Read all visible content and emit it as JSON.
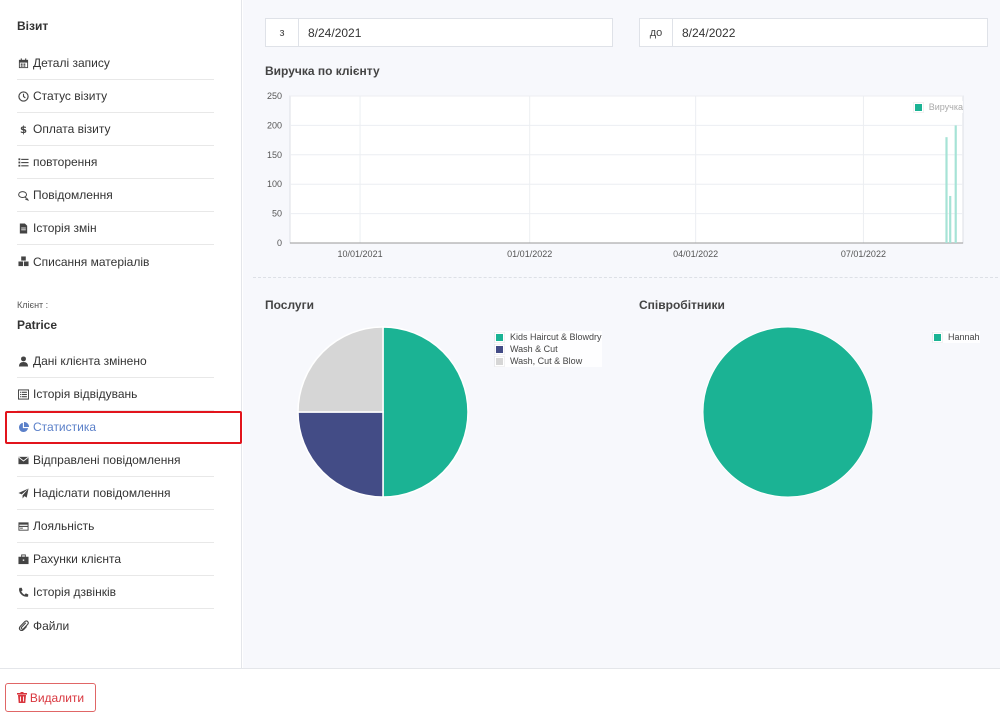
{
  "sidebar": {
    "visit_title": "Візит",
    "visit_items": [
      {
        "label": "Деталі запису",
        "icon": "calendar-icon"
      },
      {
        "label": "Статус візиту",
        "icon": "clock-icon"
      },
      {
        "label": "Оплата візиту",
        "icon": "dollar-icon"
      },
      {
        "label": "повторення",
        "icon": "list-icon"
      },
      {
        "label": "Повідомлення",
        "icon": "comments-icon"
      },
      {
        "label": "Історія змін",
        "icon": "file-icon"
      },
      {
        "label": "Списання матеріалів",
        "icon": "cubes-icon"
      }
    ],
    "client_label": "Клієнт :",
    "client_name": "Patrice",
    "client_items": [
      {
        "label": "Дані клієнта змінено",
        "icon": "user-icon"
      },
      {
        "label": "Історія відвідувань",
        "icon": "list-alt-icon"
      },
      {
        "label": "Статистика",
        "icon": "pie-chart-icon",
        "active": true
      },
      {
        "label": "Відправлені повідомлення",
        "icon": "envelope-icon"
      },
      {
        "label": "Надіслати повідомлення",
        "icon": "paper-plane-icon"
      },
      {
        "label": "Лояльність",
        "icon": "credit-card-icon"
      },
      {
        "label": "Рахунки клієнта",
        "icon": "briefcase-icon"
      },
      {
        "label": "Історія дзвінків",
        "icon": "phone-icon"
      },
      {
        "label": "Файли",
        "icon": "paperclip-icon"
      }
    ]
  },
  "filters": {
    "from_prefix": "з",
    "from_value": "8/24/2021",
    "to_prefix": "до",
    "to_value": "8/24/2022"
  },
  "revenue_title": "Виручка по клієнту",
  "services_title": "Послуги",
  "staff_title": "Співробітники",
  "footer": {
    "delete_label": "Видалити"
  },
  "colors": {
    "teal": "#1bb394",
    "navy": "#434c86",
    "gray": "#d6d6d6",
    "active": "#5b80c9",
    "danger": "#d9363e"
  },
  "chart_data": [
    {
      "type": "bar",
      "x": [
        "2022-08-15",
        "2022-08-17",
        "2022-08-20"
      ],
      "values": [
        180,
        80,
        200
      ],
      "xticks": [
        "10/01/2021",
        "01/01/2022",
        "04/01/2022",
        "07/01/2022"
      ],
      "yticks": [
        0,
        50,
        100,
        150,
        200,
        250
      ],
      "ylim": [
        0,
        250
      ],
      "series": [
        {
          "name": "Виручка",
          "color": "#a6e3d6"
        }
      ],
      "legend": "top-right",
      "grid": true
    },
    {
      "type": "pie",
      "categories": [
        "Kids Haircut & Blowdry",
        "Wash & Cut",
        "Wash, Cut & Blow"
      ],
      "values": [
        50,
        25,
        25
      ],
      "colors": [
        "#1bb394",
        "#434c86",
        "#d6d6d6"
      ],
      "legend": "top-right"
    },
    {
      "type": "pie",
      "categories": [
        "Hannah"
      ],
      "values": [
        100
      ],
      "colors": [
        "#1bb394"
      ],
      "legend": "top-right"
    }
  ]
}
